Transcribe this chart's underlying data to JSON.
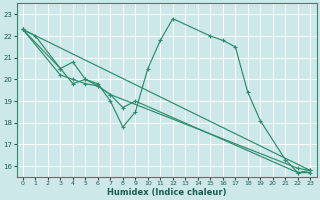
{
  "xlabel": "Humidex (Indice chaleur)",
  "bg_color": "#cce8e8",
  "grid_color": "#ffffff",
  "line_color": "#2e8b6e",
  "xlim": [
    -0.5,
    23.5
  ],
  "ylim": [
    15.5,
    23.5
  ],
  "yticks": [
    16,
    17,
    18,
    19,
    20,
    21,
    22,
    23
  ],
  "xticks": [
    0,
    1,
    2,
    3,
    4,
    5,
    6,
    7,
    8,
    9,
    10,
    11,
    12,
    13,
    14,
    15,
    16,
    17,
    18,
    19,
    20,
    21,
    22,
    23
  ],
  "line1_x": [
    0,
    1,
    3,
    4,
    5,
    6,
    7,
    8,
    9,
    10,
    11,
    12,
    15,
    16,
    17,
    18,
    19,
    21,
    22,
    23
  ],
  "line1_y": [
    22.3,
    22.0,
    20.5,
    20.8,
    20.0,
    19.8,
    19.0,
    17.8,
    18.5,
    20.5,
    21.8,
    22.8,
    22.0,
    21.8,
    21.5,
    19.4,
    18.1,
    16.3,
    15.7,
    15.7
  ],
  "line2_x": [
    0,
    3,
    4,
    5,
    6,
    7,
    8,
    9,
    22,
    23
  ],
  "line2_y": [
    22.3,
    20.5,
    19.8,
    20.0,
    19.7,
    19.3,
    18.7,
    19.0,
    15.7,
    15.8
  ],
  "line3_x": [
    0,
    3,
    4,
    5,
    6,
    7,
    22,
    23
  ],
  "line3_y": [
    22.3,
    20.2,
    20.0,
    19.8,
    19.7,
    19.3,
    15.9,
    15.8
  ],
  "line4_x": [
    0,
    23
  ],
  "line4_y": [
    22.3,
    15.8
  ]
}
